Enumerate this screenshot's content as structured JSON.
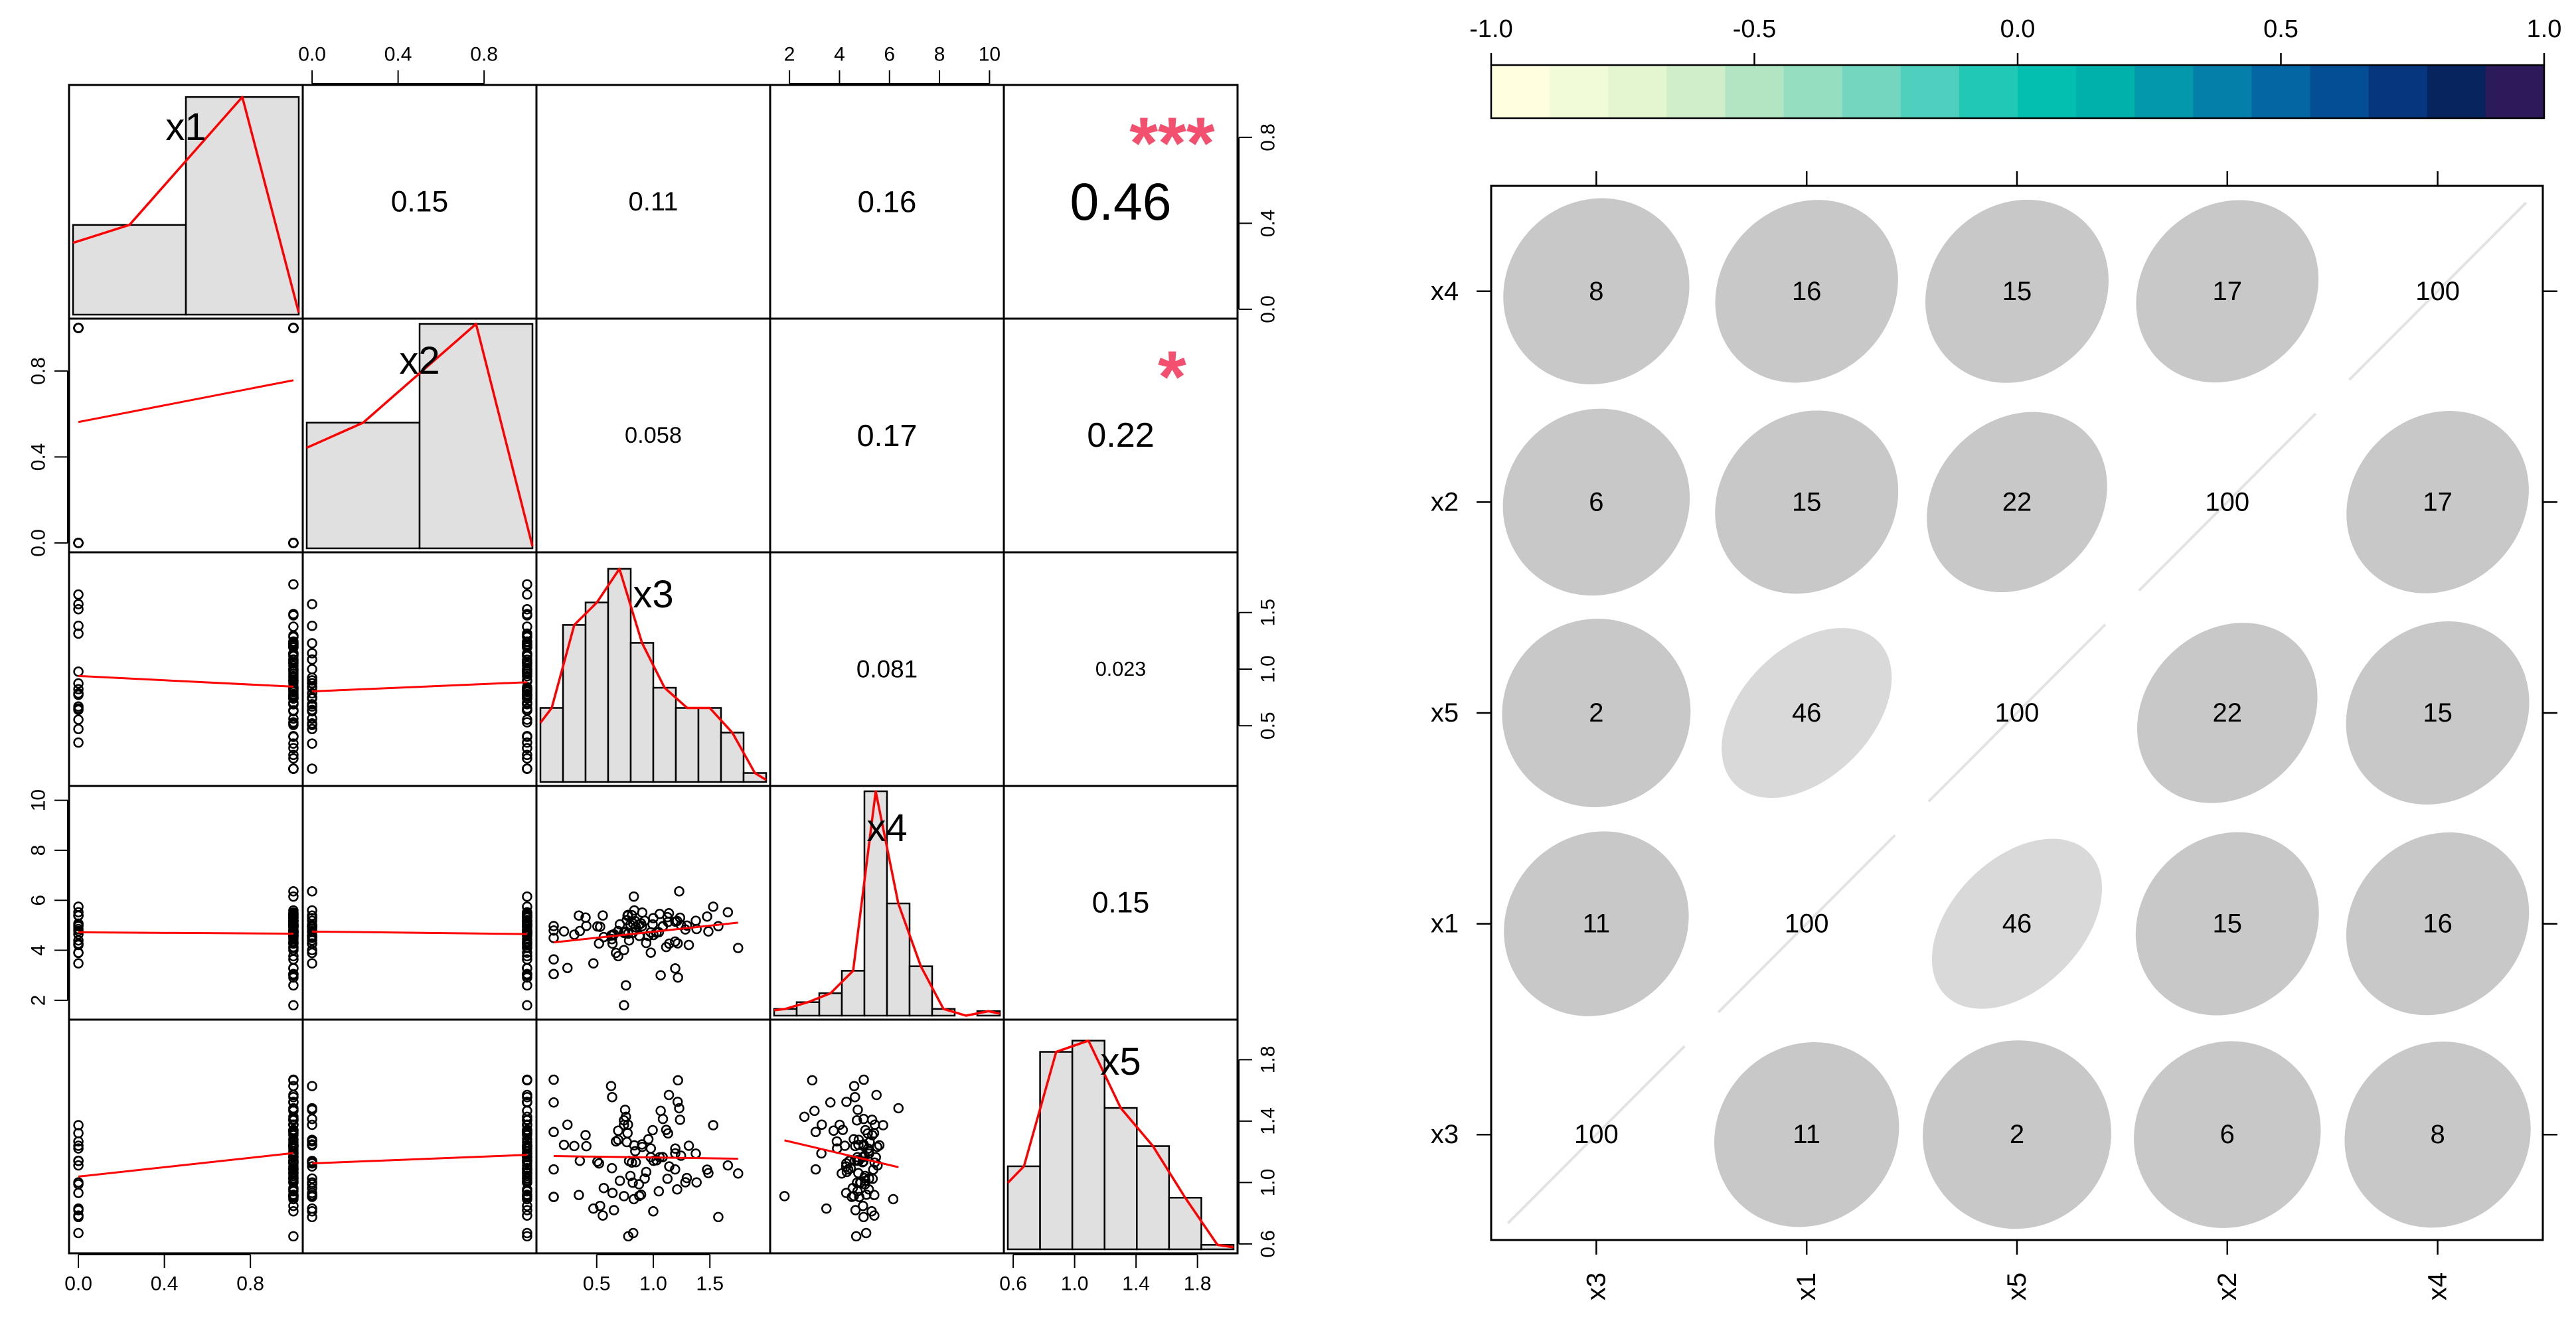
{
  "chart_data": [
    {
      "type": "scatter_matrix",
      "title": "",
      "variables": [
        "x1",
        "x2",
        "x3",
        "x4",
        "x5"
      ],
      "axes": {
        "x1": {
          "ticks": [
            "0.0",
            "0.4",
            "0.8"
          ],
          "tick_values": [
            0,
            0.4,
            0.8
          ],
          "range": [
            0,
            1
          ]
        },
        "x2": {
          "ticks": [
            "0.0",
            "0.4",
            "0.8"
          ],
          "tick_values": [
            0,
            0.4,
            0.8
          ],
          "range": [
            0,
            1
          ]
        },
        "x3": {
          "ticks": [
            "0.5",
            "1.0",
            "1.5"
          ],
          "tick_values": [
            0.5,
            1.0,
            1.5
          ],
          "range": [
            0.05,
            1.95
          ]
        },
        "x4": {
          "ticks": [
            "2",
            "4",
            "6",
            "8",
            "10"
          ],
          "tick_values": [
            2,
            4,
            6,
            8,
            10
          ],
          "range": [
            1.6,
            10.2
          ]
        },
        "x5": {
          "ticks": [
            "0.6",
            "1.0",
            "1.4",
            "1.8"
          ],
          "tick_values": [
            0.6,
            1.0,
            1.4,
            1.8
          ],
          "range": [
            0.6,
            2.0
          ]
        }
      },
      "correlations": [
        {
          "pair": [
            "x1",
            "x2"
          ],
          "label": "0.15",
          "stars": ""
        },
        {
          "pair": [
            "x1",
            "x3"
          ],
          "label": "0.11",
          "stars": ""
        },
        {
          "pair": [
            "x1",
            "x4"
          ],
          "label": "0.16",
          "stars": ""
        },
        {
          "pair": [
            "x1",
            "x5"
          ],
          "label": "0.46",
          "stars": "***"
        },
        {
          "pair": [
            "x2",
            "x3"
          ],
          "label": "0.058",
          "stars": ""
        },
        {
          "pair": [
            "x2",
            "x4"
          ],
          "label": "0.17",
          "stars": ""
        },
        {
          "pair": [
            "x2",
            "x5"
          ],
          "label": "0.22",
          "stars": "*"
        },
        {
          "pair": [
            "x3",
            "x4"
          ],
          "label": "0.081",
          "stars": ""
        },
        {
          "pair": [
            "x3",
            "x5"
          ],
          "label": "0.023",
          "stars": ""
        },
        {
          "pair": [
            "x4",
            "x5"
          ],
          "label": "0.15",
          "stars": ""
        }
      ],
      "histograms": {
        "x1": {
          "breaks": [
            0,
            0.5,
            1.0
          ],
          "heights": [
            0.4,
            0.97
          ]
        },
        "x2": {
          "breaks": [
            0,
            0.5,
            1.0
          ],
          "heights": [
            0.56,
            1.0
          ]
        },
        "x3": {
          "breaks": [
            0.0,
            0.2,
            0.4,
            0.6,
            0.8,
            1.0,
            1.2,
            1.4,
            1.6,
            1.8,
            2.0
          ],
          "heights": [
            0.33,
            0.7,
            0.8,
            0.95,
            0.62,
            0.42,
            0.33,
            0.33,
            0.22,
            0.04
          ]
        },
        "x4": {
          "breaks": [
            1,
            2,
            3,
            4,
            5,
            6,
            7,
            8,
            9,
            10,
            11
          ],
          "heights": [
            0.03,
            0.06,
            0.1,
            0.2,
            1.0,
            0.5,
            0.22,
            0.03,
            0.0,
            0.02
          ]
        },
        "x5": {
          "breaks": [
            0.6,
            0.8,
            1.0,
            1.2,
            1.4,
            1.6,
            1.8,
            2.0
          ],
          "heights": [
            0.37,
            0.88,
            0.93,
            0.63,
            0.46,
            0.23,
            0.02
          ]
        }
      },
      "annotation_color": "#f2506e",
      "curve_color": "#ff0000",
      "bar_fill": "#e0e0e0"
    },
    {
      "type": "correlogram",
      "x_labels": [
        "x3",
        "x1",
        "x5",
        "x2",
        "x4"
      ],
      "y_labels": [
        "x4",
        "x2",
        "x5",
        "x1",
        "x3"
      ],
      "values": [
        [
          8,
          16,
          15,
          17,
          100
        ],
        [
          6,
          15,
          22,
          100,
          17
        ],
        [
          2,
          46,
          100,
          22,
          15
        ],
        [
          11,
          100,
          46,
          15,
          16
        ],
        [
          100,
          11,
          2,
          6,
          8
        ]
      ],
      "colorbar": {
        "range": [
          -1,
          1
        ],
        "ticks": [
          "-1.0",
          "-0.5",
          "0.0",
          "0.5",
          "1.0"
        ],
        "tick_values": [
          -1.0,
          -0.5,
          0.0,
          0.5,
          1.0
        ],
        "colors": [
          "#ffffe0",
          "#f2fbd7",
          "#e4f6d0",
          "#cfeec9",
          "#b2e6c3",
          "#95dec0",
          "#74d6bf",
          "#4fcfbd",
          "#21c8b6",
          "#02bfaf",
          "#00b0aa",
          "#0398ab",
          "#037fa9",
          "#0466a2",
          "#044e95",
          "#06377e",
          "#08245e",
          "#2c1a5a"
        ]
      },
      "ellipse_color": "#c8c8c8",
      "ellipse_color_light": "#d9d9d9",
      "diagonal_color": "#e3e3e3"
    }
  ]
}
